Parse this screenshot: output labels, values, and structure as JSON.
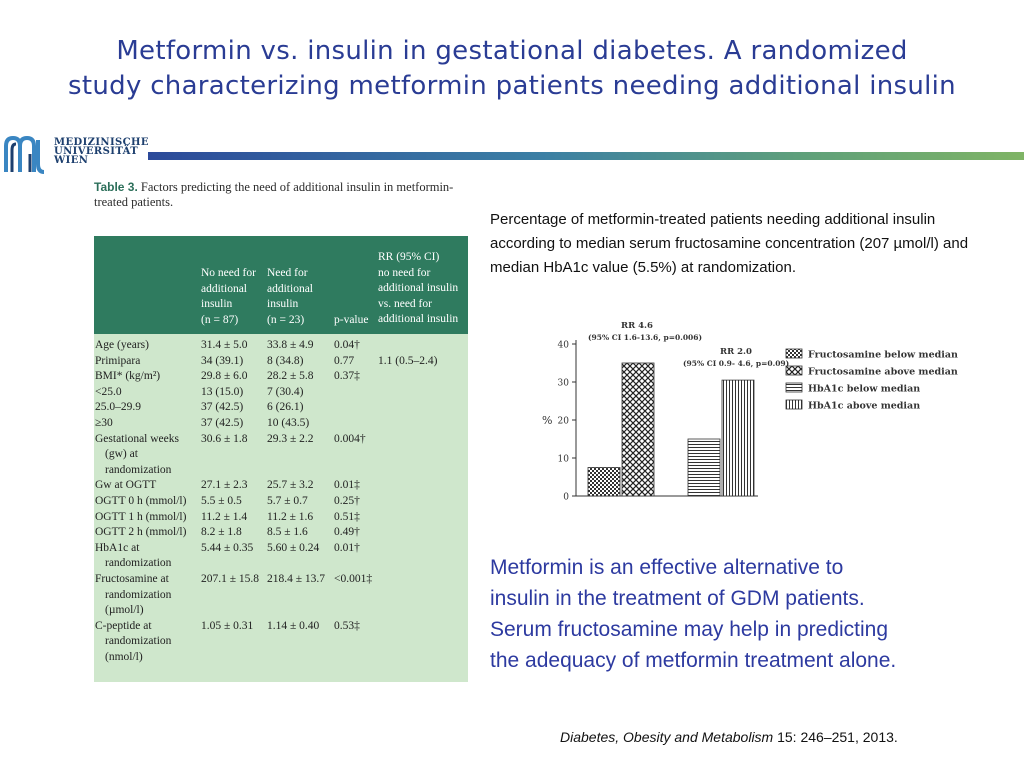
{
  "title": {
    "line1": "Metformin vs. insulin in gestational diabetes. A randomized",
    "line2": "study characterizing metformin patients needing additional insulin"
  },
  "logo": {
    "line1": "MEDIZINISCHE",
    "line2": "UNIVERSITÄT",
    "line3": "WIEN",
    "colors": {
      "blue": "#1d3f6e",
      "green": "#5fa07a"
    }
  },
  "table": {
    "caption_label": "Table 3.",
    "caption_text": "Factors predicting the need of additional insulin in metformin-treated patients.",
    "header": {
      "col1": [
        "No need for",
        "additional",
        "insulin",
        "(n = 87)"
      ],
      "col2": [
        "Need for",
        "additional",
        "insulin",
        "(n = 23)"
      ],
      "col3": [
        "p-value"
      ],
      "col4": [
        "RR (95% CI)",
        "no need for",
        "additional insulin",
        "vs. need for",
        "additional insulin"
      ]
    },
    "rows": [
      {
        "label": [
          "Age (years)"
        ],
        "v1": "31.4 ± 5.0",
        "v2": "33.8 ± 4.9",
        "p": "0.04†",
        "rr": ""
      },
      {
        "label": [
          "Primipara"
        ],
        "v1": "34 (39.1)",
        "v2": "8 (34.8)",
        "p": "0.77",
        "rr": "1.1 (0.5–2.4)"
      },
      {
        "label": [
          "BMI* (kg/m²)"
        ],
        "v1": "29.8 ± 6.0",
        "v2": "28.2 ± 5.8",
        "p": "0.37‡",
        "rr": ""
      },
      {
        "label": [
          "<25.0"
        ],
        "v1": "13 (15.0)",
        "v2": "7 (30.4)",
        "p": "",
        "rr": ""
      },
      {
        "label": [
          "25.0–29.9"
        ],
        "v1": "37 (42.5)",
        "v2": "6 (26.1)",
        "p": "",
        "rr": ""
      },
      {
        "label": [
          "≥30"
        ],
        "v1": "37 (42.5)",
        "v2": "10 (43.5)",
        "p": "",
        "rr": ""
      },
      {
        "label": [
          "Gestational weeks",
          "(gw) at",
          "randomization"
        ],
        "v1": "30.6 ± 1.8",
        "v2": "29.3 ± 2.2",
        "p": "0.004†",
        "rr": ""
      },
      {
        "label": [
          "Gw at OGTT"
        ],
        "v1": "27.1 ± 2.3",
        "v2": "25.7 ± 3.2",
        "p": "0.01‡",
        "rr": ""
      },
      {
        "label": [
          "OGTT 0 h (mmol/l)"
        ],
        "v1": "5.5 ± 0.5",
        "v2": "5.7 ± 0.7",
        "p": "0.25†",
        "rr": ""
      },
      {
        "label": [
          "OGTT 1 h (mmol/l)"
        ],
        "v1": "11.2 ± 1.4",
        "v2": "11.2 ± 1.6",
        "p": "0.51‡",
        "rr": ""
      },
      {
        "label": [
          "OGTT 2 h (mmol/l)"
        ],
        "v1": "8.2 ± 1.8",
        "v2": "8.5 ± 1.6",
        "p": "0.49†",
        "rr": ""
      },
      {
        "label": [
          "HbA1c at",
          "randomization"
        ],
        "v1": "5.44 ± 0.35",
        "v2": "5.60 ± 0.24",
        "p": "0.01†",
        "rr": ""
      },
      {
        "label": [
          "Fructosamine at",
          "randomization",
          "(µmol/l)"
        ],
        "v1": "207.1 ± 15.8",
        "v2": "218.4 ± 13.7",
        "p": "<0.001‡",
        "rr": ""
      },
      {
        "label": [
          "C-peptide at",
          "randomization",
          "(nmol/l)"
        ],
        "v1": "1.05 ± 0.31",
        "v2": "1.14 ± 0.40",
        "p": "0.53‡",
        "rr": ""
      }
    ],
    "colors": {
      "header_bg": "#2f7b5f",
      "body_bg": "#cfe7cc",
      "caption_label": "#2c6f5a"
    }
  },
  "right_caption": "Percentage of metformin-treated patients needing additional insulin according to median serum fructosamine concentration (207 µmol/l) and median HbA1c value (5.5%) at randomization.",
  "chart_data": {
    "type": "bar",
    "ylabel": "%",
    "ylim": [
      0,
      40
    ],
    "yticks": [
      0,
      10,
      20,
      30,
      40
    ],
    "series": [
      {
        "name": "Fructosamine below median",
        "value": 7.5,
        "pattern": "dots"
      },
      {
        "name": "Fructosamine above median",
        "value": 35,
        "pattern": "crosshatch"
      },
      {
        "name": "HbA1c below median",
        "value": 15,
        "pattern": "horizontal"
      },
      {
        "name": "HbA1c above median",
        "value": 30.5,
        "pattern": "vertical"
      }
    ],
    "annotations": [
      {
        "line1": "RR 4.6",
        "line2": "(95% CI 1.6-13.6, p=0.006)"
      },
      {
        "line1": "RR 2.0",
        "line2": "(95% CI 0.9- 4.6, p=0.09)"
      }
    ],
    "grid": false,
    "legend_position": "top-right"
  },
  "conclusion": {
    "line1": "Metformin is an effective alternative to",
    "line2": "insulin in the treatment of GDM patients.",
    "line3": "Serum fructosamine may help in predicting",
    "line4": "the adequacy of metformin treatment alone."
  },
  "citation": {
    "journal": "Diabetes, Obesity and Metabolism",
    "details": " 15: 246–251, 2013."
  },
  "colors": {
    "title": "#2a3c94",
    "conclusion": "#2d3aa0"
  }
}
